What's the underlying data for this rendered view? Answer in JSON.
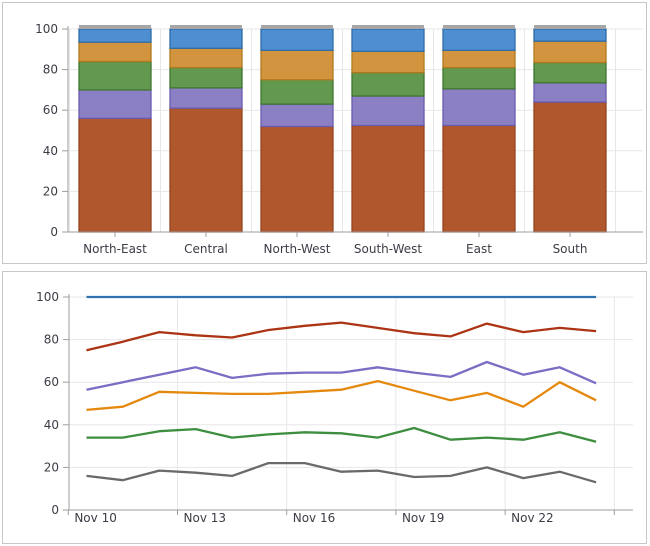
{
  "palette": {
    "panel_border": "#c6c6c6",
    "grid_color": "#e7e7e7",
    "axis_color": "#9e9e9e",
    "label_color": "#3c3c46",
    "background": "#ffffff"
  },
  "chart_data": [
    {
      "type": "bar",
      "stacked": true,
      "title": "",
      "categories": [
        "North-East",
        "Central",
        "North-West",
        "South-West",
        "East",
        "South"
      ],
      "series": [
        {
          "id": "rust",
          "color": "#b1572d",
          "border": "#94441e",
          "values": [
            56,
            61,
            52,
            52.5,
            52.5,
            64
          ]
        },
        {
          "id": "purple",
          "color": "#8c80c4",
          "border": "#6a5bb0",
          "values": [
            14,
            10,
            11,
            14.5,
            18,
            9.5
          ]
        },
        {
          "id": "green",
          "color": "#63994f",
          "border": "#3e7630",
          "values": [
            14,
            10,
            12,
            11.5,
            10.5,
            10
          ]
        },
        {
          "id": "orange",
          "color": "#d39440",
          "border": "#b2781c",
          "values": [
            9.5,
            9.5,
            14.5,
            10.5,
            8.5,
            10.5
          ]
        },
        {
          "id": "blue",
          "color": "#4d8fd1",
          "border": "#2e6ca8",
          "values": [
            6.5,
            9.5,
            10.5,
            11,
            10.5,
            6
          ]
        }
      ],
      "bar_top_cap_color": "#a6a6a6",
      "xlabel": "",
      "ylabel": "",
      "ylim": [
        0,
        100
      ],
      "yticks": [
        0,
        20,
        40,
        60,
        80,
        100
      ],
      "grid": true,
      "legend": "none"
    },
    {
      "type": "line",
      "title": "",
      "x": [
        "Nov 10",
        "Nov 11",
        "Nov 12",
        "Nov 13",
        "Nov 14",
        "Nov 15",
        "Nov 16",
        "Nov 17",
        "Nov 18",
        "Nov 19",
        "Nov 20",
        "Nov 21",
        "Nov 22",
        "Nov 23",
        "Nov 24"
      ],
      "xtick_labels": [
        "Nov 10",
        "Nov 13",
        "Nov 16",
        "Nov 19",
        "Nov 22"
      ],
      "series": [
        {
          "id": "gray",
          "color": "#6a6a6a",
          "values": [
            16,
            14,
            18.5,
            17.5,
            16,
            22,
            22,
            18,
            18.5,
            15.5,
            16,
            20,
            15,
            18,
            13
          ]
        },
        {
          "id": "green",
          "color": "#3e8e40",
          "values": [
            34,
            34,
            37,
            38,
            34,
            35.5,
            36.5,
            36,
            34,
            38.5,
            33,
            34,
            33,
            36.5,
            32
          ]
        },
        {
          "id": "orange",
          "color": "#e5890e",
          "values": [
            47,
            48.5,
            55.5,
            55,
            54.5,
            54.5,
            55.5,
            56.5,
            60.5,
            56,
            51.5,
            55,
            48.5,
            60,
            51.5
          ]
        },
        {
          "id": "purple",
          "color": "#7b6cc4",
          "values": [
            56.5,
            60,
            63.5,
            67,
            62,
            64,
            64.5,
            64.5,
            67,
            64.5,
            62.5,
            69.5,
            63.5,
            67,
            59.5
          ]
        },
        {
          "id": "red",
          "color": "#ac3414",
          "values": [
            75,
            79,
            83.5,
            82,
            81,
            84.5,
            86.5,
            88,
            85.5,
            83,
            81.5,
            87.5,
            83.5,
            85.5,
            84
          ]
        },
        {
          "id": "blue",
          "color": "#2e73ae",
          "values": [
            100,
            100,
            100,
            100,
            100,
            100,
            100,
            100,
            100,
            100,
            100,
            100,
            100,
            100,
            100
          ]
        }
      ],
      "xlabel": "",
      "ylabel": "",
      "ylim": [
        0,
        100
      ],
      "yticks": [
        0,
        20,
        40,
        60,
        80,
        100
      ],
      "grid": true,
      "legend": "none"
    }
  ]
}
